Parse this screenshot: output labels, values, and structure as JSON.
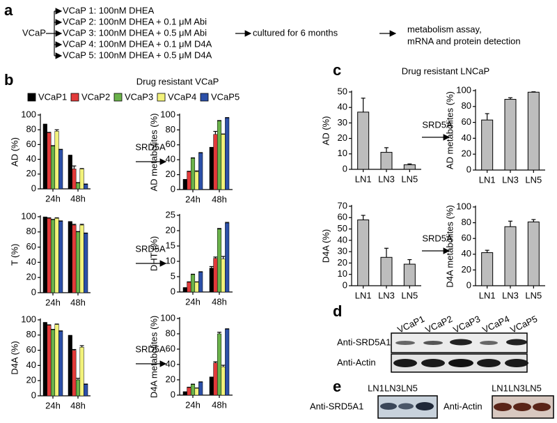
{
  "panel_labels": [
    "a",
    "b",
    "c",
    "d",
    "e"
  ],
  "panel_a": {
    "source": "VCaP",
    "conditions": [
      "VCaP 1: 100nM DHEA",
      "VCaP 2: 100nM DHEA + 0.1 μM Abi",
      "VCaP 3: 100nM DHEA + 0.5 μM Abi",
      "VCaP 4: 100nM DHEA + 0.1 μM D4A",
      "VCaP 5: 100nM DHEA + 0.5 μM D4A"
    ],
    "step": "cultured for 6 months",
    "outcome": [
      "metabolism assay,",
      "mRNA and protein detection"
    ]
  },
  "panel_b": {
    "title": "Drug resistant VCaP",
    "legend": [
      {
        "name": "VCaP1",
        "color": "#000000"
      },
      {
        "name": "VCaP2",
        "color": "#e23a3a"
      },
      {
        "name": "VCaP3",
        "color": "#6ab24a"
      },
      {
        "name": "VCaP4",
        "color": "#f2f27a"
      },
      {
        "name": "VCaP5",
        "color": "#2c50a8"
      }
    ],
    "arrow_label": "SRD5A"
  },
  "panel_c": {
    "title": "Drug resistant LNCaP",
    "arrow_label": "SRD5A"
  },
  "chart_data": [
    {
      "type": "bar",
      "ylabel": "AD (%)",
      "categories": [
        "24h",
        "48h"
      ],
      "ylim": [
        0,
        100
      ],
      "yticks": [
        0,
        20,
        40,
        60,
        80,
        100
      ],
      "series": [
        {
          "values": [
            87,
            45
          ],
          "errors": [
            0.5,
            0.5
          ]
        },
        {
          "values": [
            76,
            27
          ],
          "errors": [
            0.5,
            4
          ]
        },
        {
          "values": [
            58,
            8
          ],
          "errors": [
            0.5,
            0.5
          ]
        },
        {
          "values": [
            78,
            27
          ],
          "errors": [
            2,
            0.5
          ]
        },
        {
          "values": [
            53,
            6
          ],
          "errors": [
            0.5,
            0.5
          ]
        }
      ]
    },
    {
      "type": "bar",
      "ylabel": "AD metabolites (%)",
      "categories": [
        "24h",
        "48h"
      ],
      "ylim": [
        0,
        100
      ],
      "yticks": [
        0,
        20,
        40,
        60,
        80,
        100
      ],
      "series": [
        {
          "values": [
            13,
            56
          ],
          "errors": [
            0.5,
            0.5
          ]
        },
        {
          "values": [
            24,
            74
          ],
          "errors": [
            0.5,
            4
          ]
        },
        {
          "values": [
            42,
            92
          ],
          "errors": [
            0.5,
            0.5
          ]
        },
        {
          "values": [
            24,
            74
          ],
          "errors": [
            1,
            0.5
          ]
        },
        {
          "values": [
            49,
            96
          ],
          "errors": [
            0.5,
            0.5
          ]
        }
      ]
    },
    {
      "type": "bar",
      "ylabel": "T (%)",
      "categories": [
        "24h",
        "48h"
      ],
      "ylim": [
        0,
        100
      ],
      "yticks": [
        0,
        20,
        40,
        60,
        80,
        100
      ],
      "series": [
        {
          "values": [
            99,
            93
          ],
          "errors": [
            0.5,
            0.5
          ]
        },
        {
          "values": [
            98,
            89
          ],
          "errors": [
            0.5,
            1
          ]
        },
        {
          "values": [
            96,
            80
          ],
          "errors": [
            0.5,
            0.5
          ]
        },
        {
          "values": [
            98,
            89
          ],
          "errors": [
            0.5,
            1
          ]
        },
        {
          "values": [
            94,
            78
          ],
          "errors": [
            0.5,
            0.5
          ]
        }
      ]
    },
    {
      "type": "bar",
      "ylabel": "DHT (%)",
      "categories": [
        "24h",
        "48h"
      ],
      "ylim": [
        0,
        25
      ],
      "yticks": [
        0,
        5,
        10,
        15,
        20,
        25
      ],
      "series": [
        {
          "values": [
            1.3,
            7.8
          ],
          "errors": [
            0.1,
            0.5
          ]
        },
        {
          "values": [
            3.2,
            11
          ],
          "errors": [
            0.1,
            0.4
          ]
        },
        {
          "values": [
            5.7,
            20.5
          ],
          "errors": [
            0.1,
            0.2
          ]
        },
        {
          "values": [
            3.2,
            10.8
          ],
          "errors": [
            0.1,
            0.8
          ]
        },
        {
          "values": [
            6.5,
            22.5
          ],
          "errors": [
            0.1,
            0.2
          ]
        }
      ]
    },
    {
      "type": "bar",
      "ylabel": "D4A (%)",
      "categories": [
        "24h",
        "48h"
      ],
      "ylim": [
        0,
        100
      ],
      "yticks": [
        0,
        20,
        40,
        60,
        80,
        100
      ],
      "series": [
        {
          "values": [
            96,
            79
          ],
          "errors": [
            0.5,
            0.5
          ]
        },
        {
          "values": [
            93,
            60
          ],
          "errors": [
            0.5,
            1
          ]
        },
        {
          "values": [
            87,
            21
          ],
          "errors": [
            0.5,
            2
          ]
        },
        {
          "values": [
            94,
            64
          ],
          "errors": [
            0.5,
            2
          ]
        },
        {
          "values": [
            85,
            15
          ],
          "errors": [
            0.5,
            0.5
          ]
        }
      ]
    },
    {
      "type": "bar",
      "ylabel": "D4A metabolites (%)",
      "categories": [
        "24h",
        "48h"
      ],
      "ylim": [
        0,
        100
      ],
      "yticks": [
        0,
        20,
        40,
        60,
        80,
        100
      ],
      "series": [
        {
          "values": [
            4,
            23
          ],
          "errors": [
            0.3,
            0.5
          ]
        },
        {
          "values": [
            10,
            42
          ],
          "errors": [
            0.3,
            1.5
          ]
        },
        {
          "values": [
            14,
            80
          ],
          "errors": [
            0.3,
            2
          ]
        },
        {
          "values": [
            9,
            37
          ],
          "errors": [
            0.3,
            2
          ]
        },
        {
          "values": [
            17,
            86
          ],
          "errors": [
            0.3,
            0.5
          ]
        }
      ]
    },
    {
      "type": "bar",
      "ylabel": "AD (%)",
      "categories": [
        "LN1",
        "LN3",
        "LN5"
      ],
      "ylim": [
        0,
        50
      ],
      "yticks": [
        0,
        10,
        20,
        30,
        40,
        50
      ],
      "color": "#bdbdbd",
      "values": [
        37,
        11,
        3
      ],
      "errors": [
        9,
        3,
        0.5
      ]
    },
    {
      "type": "bar",
      "ylabel": "AD metabolites (%)",
      "categories": [
        "LN1",
        "LN3",
        "LN5"
      ],
      "ylim": [
        0,
        100
      ],
      "yticks": [
        0,
        20,
        40,
        60,
        80,
        100
      ],
      "color": "#bdbdbd",
      "values": [
        63,
        89,
        98
      ],
      "errors": [
        8,
        2,
        0.5
      ]
    },
    {
      "type": "bar",
      "ylabel": "D4A (%)",
      "categories": [
        "LN1",
        "LN3",
        "LN5"
      ],
      "ylim": [
        0,
        70
      ],
      "yticks": [
        0,
        10,
        20,
        30,
        40,
        50,
        60,
        70
      ],
      "color": "#bdbdbd",
      "values": [
        58,
        25,
        19
      ],
      "errors": [
        4,
        8,
        4
      ]
    },
    {
      "type": "bar",
      "ylabel": "D4A metabolites (%)",
      "categories": [
        "LN1",
        "LN3",
        "LN5"
      ],
      "ylim": [
        0,
        100
      ],
      "yticks": [
        0,
        20,
        40,
        60,
        80,
        100
      ],
      "color": "#bdbdbd",
      "values": [
        42,
        75,
        81
      ],
      "errors": [
        3,
        7,
        3
      ]
    }
  ],
  "panel_d": {
    "lanes": [
      "VCaP1",
      "VCaP2",
      "VCaP3",
      "VCaP4",
      "VCaP5"
    ],
    "rows": [
      "Anti-SRD5A1",
      "Anti-Actin"
    ]
  },
  "panel_e": {
    "lanes": [
      "LN1",
      "LN3",
      "LN5"
    ],
    "blots": [
      "Anti-SRD5A1",
      "Anti-Actin"
    ]
  }
}
